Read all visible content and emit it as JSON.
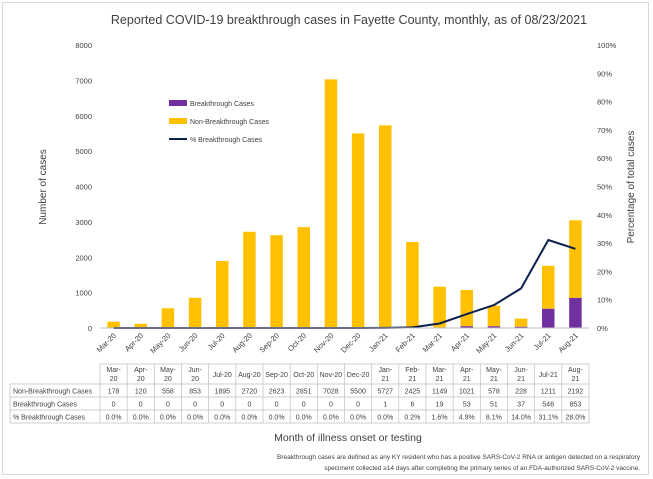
{
  "chart_data": {
    "type": "bar",
    "title": "Reported COVID-19 breakthrough cases in Fayette County, monthly, as of 08/23/2021",
    "xlabel": "Month of illness onset or testing",
    "ylabel": "Number of cases",
    "y2label": "Percentage of total cases",
    "ylim": [
      0,
      8000
    ],
    "y2lim": [
      0,
      100
    ],
    "yticks": [
      "0",
      "1000",
      "2000",
      "3000",
      "4000",
      "5000",
      "6000",
      "7000",
      "8000"
    ],
    "y2ticks": [
      "0%",
      "10%",
      "20%",
      "30%",
      "40%",
      "50%",
      "60%",
      "70%",
      "80%",
      "90%",
      "100%"
    ],
    "stacked": true,
    "legend_position": "upper-left inside plot",
    "categories": [
      "Mar-20",
      "Apr-20",
      "May-20",
      "Jun-20",
      "Jul-20",
      "Aug-20",
      "Sep-20",
      "Oct-20",
      "Nov-20",
      "Dec-20",
      "Jan-21",
      "Feb-21",
      "Mar-21",
      "Apr-21",
      "May-21",
      "Jun-21",
      "Jul-21",
      "Aug-21"
    ],
    "table_categories": [
      [
        "Mar-",
        "20"
      ],
      [
        "Apr-",
        "20"
      ],
      [
        "May-",
        "20"
      ],
      [
        "Jun-",
        "20"
      ],
      [
        "Jul-20",
        ""
      ],
      [
        "Aug-20",
        ""
      ],
      [
        "Sep-20",
        ""
      ],
      [
        "Oct-20",
        ""
      ],
      [
        "Nov-20",
        ""
      ],
      [
        "Dec-20",
        ""
      ],
      [
        "Jan-",
        "21"
      ],
      [
        "Feb-",
        "21"
      ],
      [
        "Mar-",
        "21"
      ],
      [
        "Apr-",
        "21"
      ],
      [
        "May-",
        "21"
      ],
      [
        "Jun-",
        "21"
      ],
      [
        "Jul-21",
        ""
      ],
      [
        "Aug-",
        "21"
      ]
    ],
    "series": [
      {
        "name": "Breakthrough Cases",
        "kind": "bar",
        "color": "#7030a0",
        "values": [
          0,
          0,
          0,
          0,
          0,
          0,
          0,
          0,
          0,
          0,
          1,
          6,
          19,
          53,
          51,
          37,
          546,
          853
        ],
        "labels": [
          "0",
          "0",
          "0",
          "0",
          "0",
          "0",
          "0",
          "0",
          "0",
          "0",
          "1",
          "6",
          "19",
          "53",
          "51",
          "37",
          "546",
          "853"
        ]
      },
      {
        "name": "Non-Breakthrough Cases",
        "kind": "bar",
        "color": "#ffc000",
        "values": [
          178,
          120,
          558,
          853,
          1895,
          2720,
          2623,
          2851,
          7028,
          5500,
          5727,
          2425,
          1149,
          1021,
          578,
          228,
          1211,
          2192
        ],
        "labels": [
          "178",
          "120",
          "558",
          "853",
          "1895",
          "2720",
          "2623",
          "2851",
          "7028",
          "5500",
          "5727",
          "2425",
          "1149",
          "1021",
          "578",
          "228",
          "1211",
          "2192"
        ]
      },
      {
        "name": "% Breakthrough Cases",
        "kind": "line",
        "color": "#0d1f4f",
        "axis": "secondary",
        "values": [
          0,
          0,
          0,
          0,
          0,
          0,
          0,
          0,
          0,
          0,
          0.02,
          0.2,
          1.6,
          4.9,
          8.1,
          14.0,
          31.1,
          28.0
        ],
        "labels": [
          "0.0%",
          "0.0%",
          "0.0%",
          "0.0%",
          "0.0%",
          "0.0%",
          "0.0%",
          "0.0%",
          "0.0%",
          "0.0%",
          "0.0%",
          "0.2%",
          "1.6%",
          "4.9%",
          "8.1%",
          "14.0%",
          "31.1%",
          "28.0%"
        ]
      }
    ],
    "legend": [
      "Breakthrough Cases",
      "Non-Breakthrough Cases",
      "% Breakthrough Cases"
    ],
    "table_row_labels": [
      "Non-Breakthrough Cases",
      "Breakthrough Cases",
      "% Breakthrough Cases"
    ],
    "footnote": [
      "Breakthrough cases are defined as any KY resident who has a positive SARS-CoV-2 RNA or antigen detected on a respiratory",
      "speciment collected ≥14 days after completing the primary series of an FDA-authorized SARS-CoV-2 vaccine."
    ]
  }
}
